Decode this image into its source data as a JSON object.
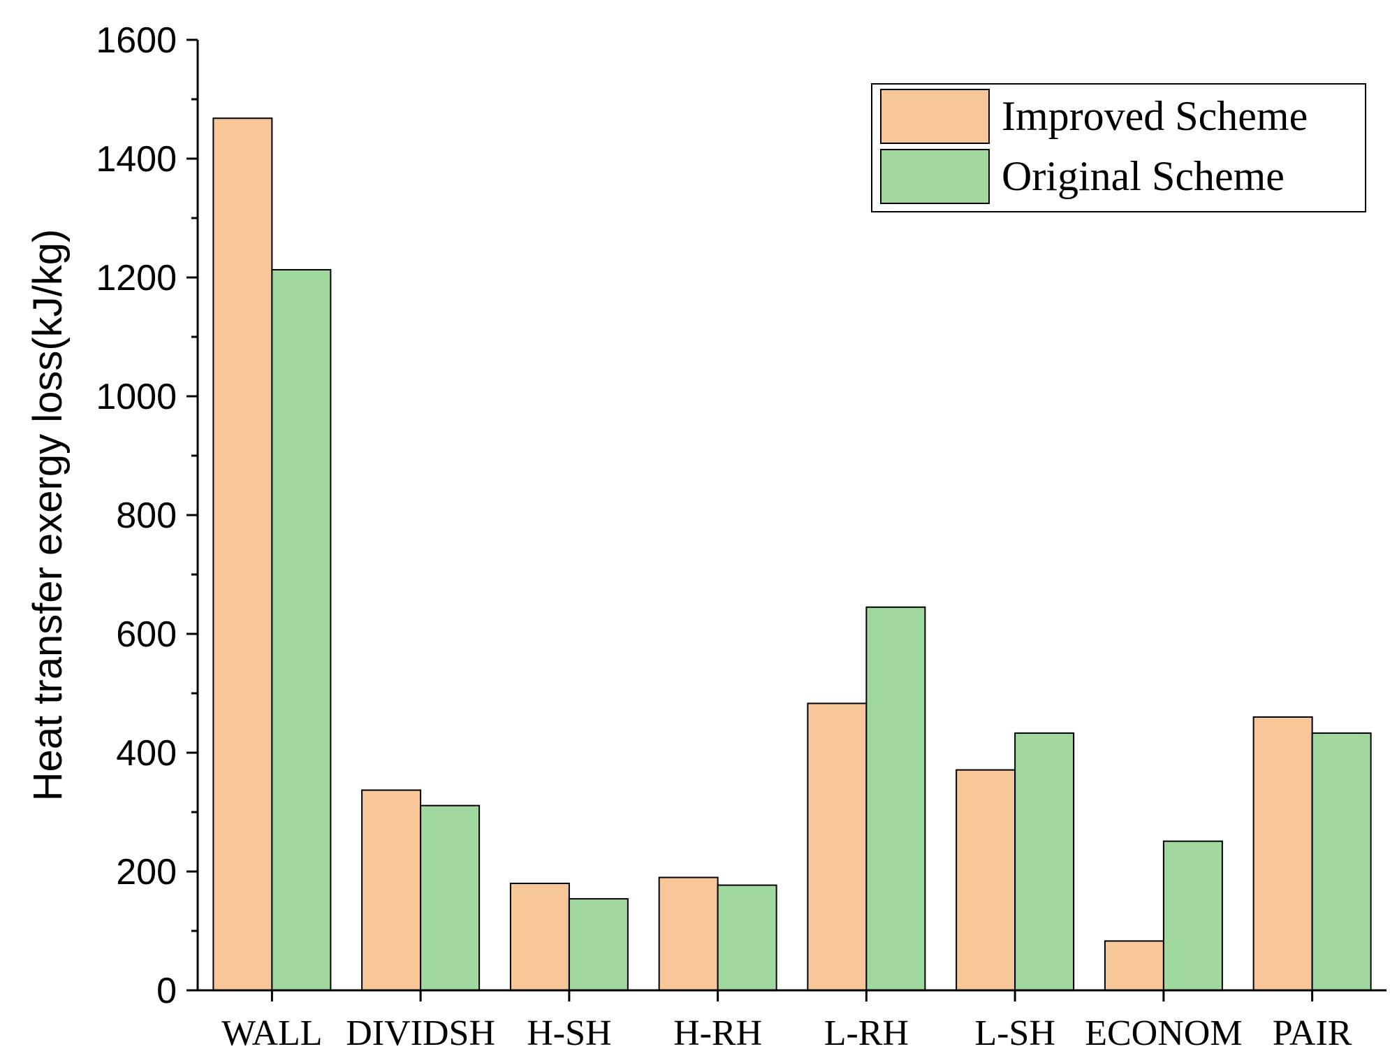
{
  "chart_data": {
    "type": "bar",
    "title": "",
    "xlabel": "",
    "ylabel": "Heat transfer exergy loss(kJ/kg)",
    "ylim": [
      0,
      1600
    ],
    "yticks": [
      0,
      200,
      400,
      600,
      800,
      1000,
      1200,
      1400,
      1600
    ],
    "categories": [
      "WALL",
      "DIVIDSH",
      "H-SH",
      "H-RH",
      "L-RH",
      "L-SH",
      "ECONOM",
      "PAIR"
    ],
    "series": [
      {
        "name": "Improved Scheme",
        "color": "#F8C799",
        "values": [
          1468,
          337,
          180,
          190,
          483,
          371,
          83,
          460
        ]
      },
      {
        "name": "Original Scheme",
        "color": "#A0D8A0",
        "values": [
          1213,
          311,
          154,
          177,
          645,
          433,
          251,
          433
        ]
      }
    ],
    "legend_position": "top-right",
    "grid": false
  }
}
